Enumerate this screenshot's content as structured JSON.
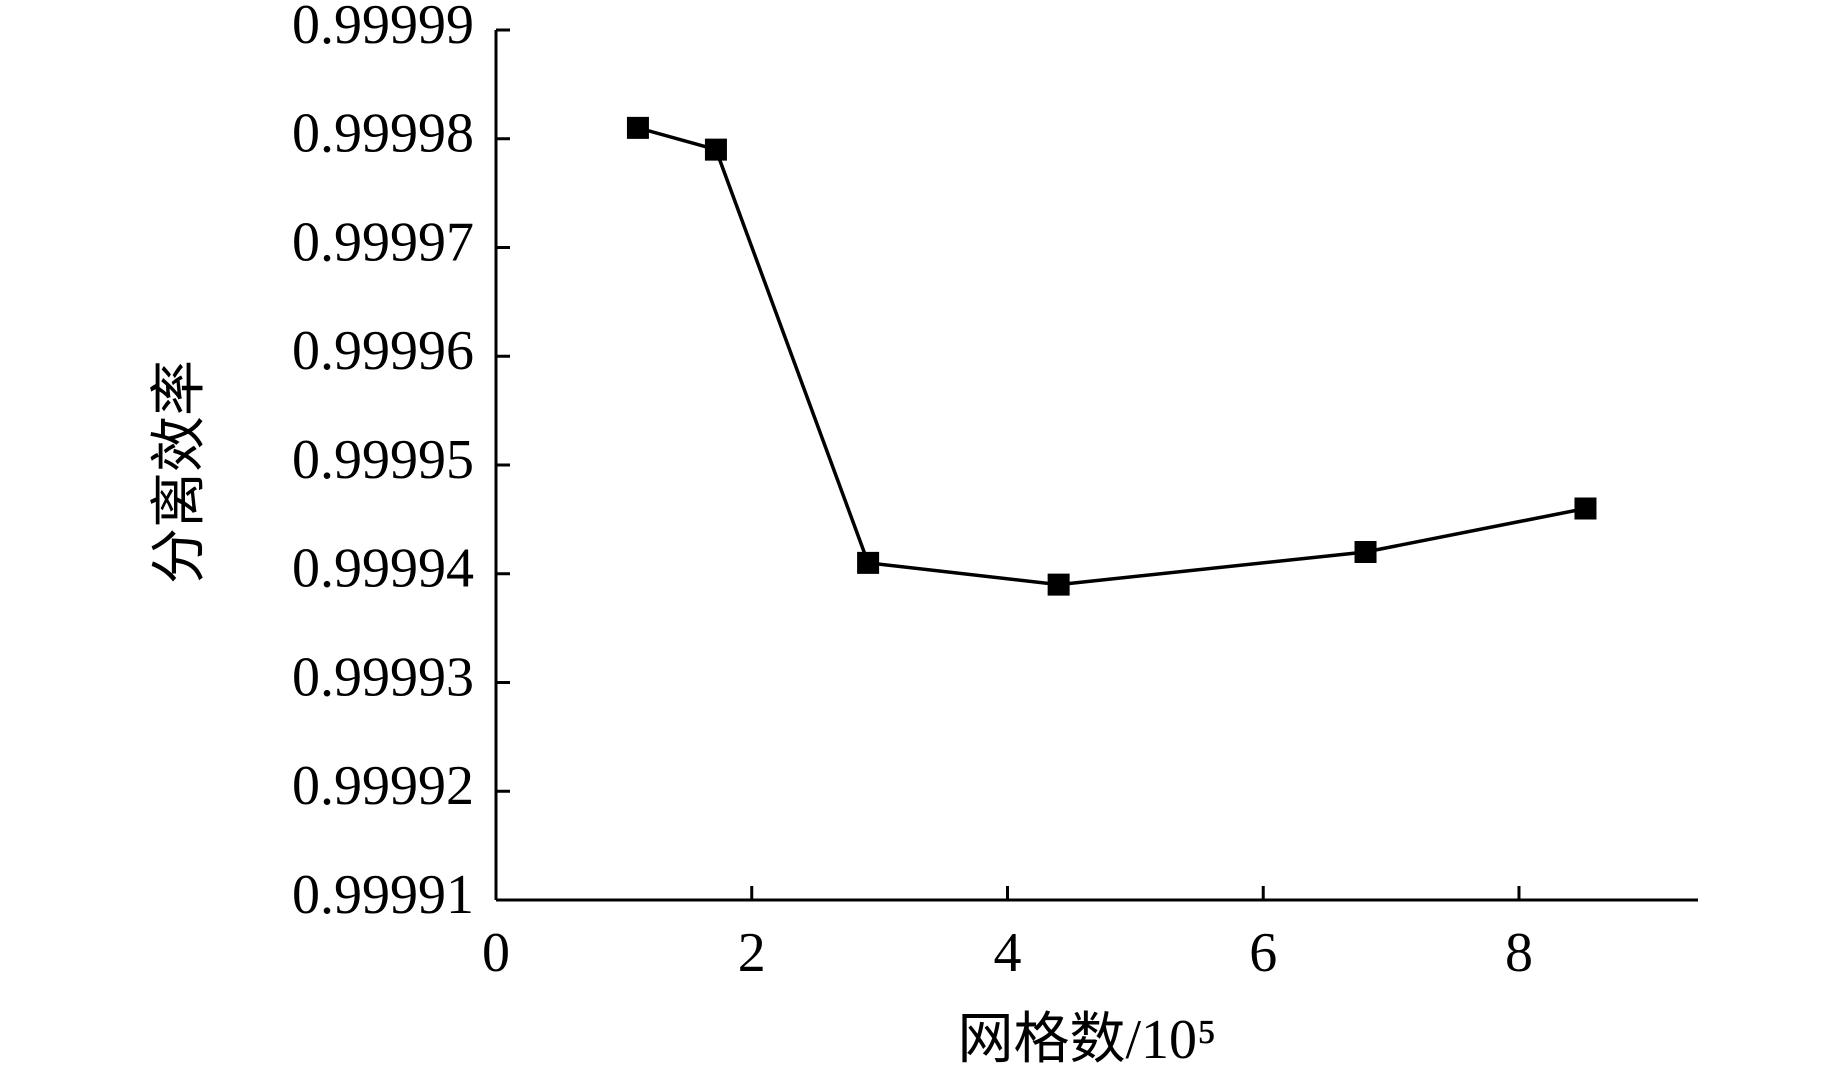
{
  "chart_data": {
    "type": "line",
    "xlabel": "网格数/10⁵",
    "ylabel": "分离效率",
    "x": [
      1.11,
      1.72,
      2.91,
      4.4,
      6.8,
      8.52
    ],
    "series": [
      {
        "color": "#000000",
        "values": [
          0.999981,
          0.999979,
          0.999941,
          0.999939,
          0.999942,
          0.999946
        ]
      }
    ],
    "xlim": [
      0,
      9.4
    ],
    "xticks": [
      0,
      2,
      4,
      6,
      8
    ],
    "ylim": [
      0.99991,
      0.99999
    ],
    "yticks": [
      0.99991,
      0.99992,
      0.99993,
      0.99994,
      0.99995,
      0.99996,
      0.99997,
      0.99998,
      0.99999
    ]
  }
}
